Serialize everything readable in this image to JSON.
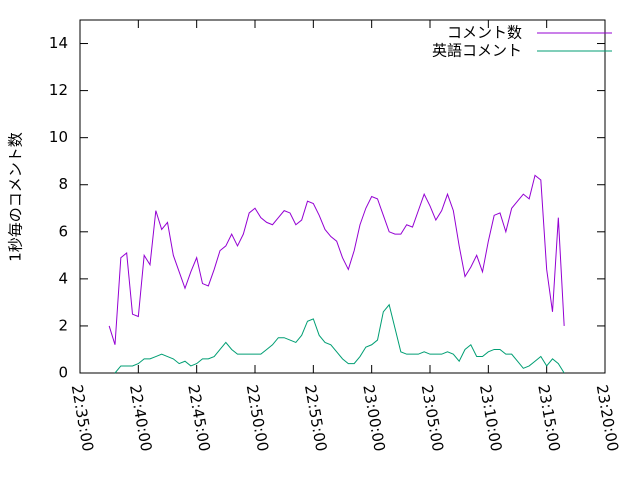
{
  "chart_data": {
    "type": "line",
    "y_label": "1秒毎のコメント数",
    "x": [
      "22:37:30",
      "22:38:00",
      "22:38:30",
      "22:39:00",
      "22:39:30",
      "22:40:00",
      "22:40:30",
      "22:41:00",
      "22:41:30",
      "22:42:00",
      "22:42:30",
      "22:43:00",
      "22:43:30",
      "22:44:00",
      "22:44:30",
      "22:45:00",
      "22:45:30",
      "22:46:00",
      "22:46:30",
      "22:47:00",
      "22:47:30",
      "22:48:00",
      "22:48:30",
      "22:49:00",
      "22:49:30",
      "22:50:00",
      "22:50:30",
      "22:51:00",
      "22:51:30",
      "22:52:00",
      "22:52:30",
      "22:53:00",
      "22:53:30",
      "22:54:00",
      "22:54:30",
      "22:55:00",
      "22:55:30",
      "22:56:00",
      "22:56:30",
      "22:57:00",
      "22:57:30",
      "22:58:00",
      "22:58:30",
      "22:59:00",
      "22:59:30",
      "23:00:00",
      "23:00:30",
      "23:01:00",
      "23:01:30",
      "23:02:00",
      "23:02:30",
      "23:03:00",
      "23:03:30",
      "23:04:00",
      "23:04:30",
      "23:05:00",
      "23:05:30",
      "23:06:00",
      "23:06:30",
      "23:07:00",
      "23:07:30",
      "23:08:00",
      "23:08:30",
      "23:09:00",
      "23:09:30",
      "23:10:00",
      "23:10:30",
      "23:11:00",
      "23:11:30",
      "23:12:00",
      "23:12:30",
      "23:13:00",
      "23:13:30",
      "23:14:00",
      "23:14:30",
      "23:15:00",
      "23:15:30",
      "23:16:00",
      "23:16:30"
    ],
    "series": [
      {
        "name": "コメント数",
        "color": "#9400d3",
        "values": [
          2.0,
          1.2,
          4.9,
          5.1,
          2.5,
          2.4,
          5.0,
          4.6,
          6.9,
          6.1,
          6.4,
          5.0,
          4.3,
          3.6,
          4.3,
          4.9,
          3.8,
          3.7,
          4.4,
          5.2,
          5.4,
          5.9,
          5.4,
          5.9,
          6.8,
          7.0,
          6.6,
          6.4,
          6.3,
          6.6,
          6.9,
          6.8,
          6.3,
          6.5,
          7.3,
          7.2,
          6.7,
          6.1,
          5.8,
          5.6,
          4.9,
          4.4,
          5.2,
          6.3,
          7.0,
          7.5,
          7.4,
          6.7,
          6.0,
          5.9,
          5.9,
          6.3,
          6.2,
          6.9,
          7.6,
          7.1,
          6.5,
          6.9,
          7.6,
          6.9,
          5.4,
          4.1,
          4.5,
          5.0,
          4.3,
          5.6,
          6.7,
          6.8,
          6.0,
          7.0,
          7.3,
          7.6,
          7.4,
          8.4,
          8.2,
          4.4,
          2.6,
          6.6,
          2.0
        ]
      },
      {
        "name": "英語コメント",
        "color": "#009e73",
        "values": [
          null,
          0.0,
          0.3,
          0.3,
          0.3,
          0.4,
          0.6,
          0.6,
          0.7,
          0.8,
          0.7,
          0.6,
          0.4,
          0.5,
          0.3,
          0.4,
          0.6,
          0.6,
          0.7,
          1.0,
          1.3,
          1.0,
          0.8,
          0.8,
          0.8,
          0.8,
          0.8,
          1.0,
          1.2,
          1.5,
          1.5,
          1.4,
          1.3,
          1.6,
          2.2,
          2.3,
          1.6,
          1.3,
          1.2,
          0.9,
          0.6,
          0.4,
          0.4,
          0.7,
          1.1,
          1.2,
          1.4,
          2.6,
          2.9,
          1.9,
          0.9,
          0.8,
          0.8,
          0.8,
          0.9,
          0.8,
          0.8,
          0.8,
          0.9,
          0.8,
          0.5,
          1.0,
          1.2,
          0.7,
          0.7,
          0.9,
          1.0,
          1.0,
          0.8,
          0.8,
          0.5,
          0.2,
          0.3,
          0.5,
          0.7,
          0.3,
          0.6,
          0.4,
          0.0
        ]
      }
    ],
    "xlim": [
      "22:35:00",
      "23:20:00"
    ],
    "xticks": [
      "22:35:00",
      "22:40:00",
      "22:45:00",
      "22:50:00",
      "22:55:00",
      "23:00:00",
      "23:05:00",
      "23:10:00",
      "23:15:00",
      "23:20:00"
    ],
    "ylim": [
      0,
      15
    ],
    "yticks": [
      0,
      2,
      4,
      6,
      8,
      10,
      12,
      14
    ],
    "legend": "top-right"
  }
}
